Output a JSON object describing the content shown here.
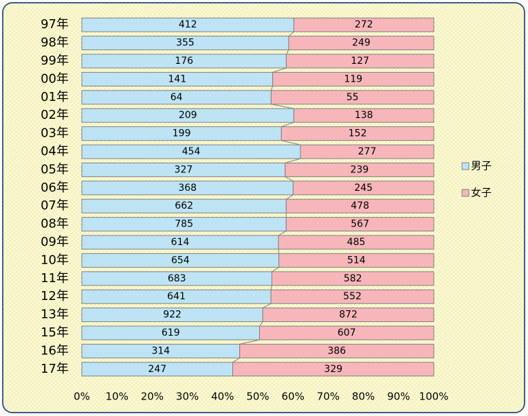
{
  "chart_data": {
    "type": "bar100h",
    "categories": [
      "97年",
      "98年",
      "99年",
      "00年",
      "01年",
      "02年",
      "03年",
      "04年",
      "05年",
      "06年",
      "07年",
      "08年",
      "09年",
      "10年",
      "11年",
      "12年",
      "13年",
      "15年",
      "16年",
      "17年"
    ],
    "series": [
      {
        "name": "男子",
        "color": "#bde3f5",
        "values": [
          412,
          355,
          176,
          141,
          64,
          209,
          199,
          454,
          327,
          368,
          662,
          785,
          614,
          654,
          683,
          641,
          922,
          619,
          314,
          247
        ]
      },
      {
        "name": "女子",
        "color": "#f7b6ba",
        "values": [
          272,
          249,
          127,
          119,
          55,
          138,
          152,
          277,
          239,
          245,
          478,
          567,
          485,
          514,
          582,
          552,
          872,
          607,
          386,
          329
        ]
      }
    ],
    "xlim": [
      0,
      100
    ],
    "xticks": [
      {
        "value": 0,
        "label": "0%"
      },
      {
        "value": 10,
        "label": "10%"
      },
      {
        "value": 20,
        "label": "20%"
      },
      {
        "value": 30,
        "label": "30%"
      },
      {
        "value": 40,
        "label": "40%"
      },
      {
        "value": 50,
        "label": "50%"
      },
      {
        "value": 60,
        "label": "60%"
      },
      {
        "value": 70,
        "label": "70%"
      },
      {
        "value": 80,
        "label": "80%"
      },
      {
        "value": 90,
        "label": "90%"
      },
      {
        "value": 100,
        "label": "100%"
      }
    ],
    "legend": "right"
  }
}
